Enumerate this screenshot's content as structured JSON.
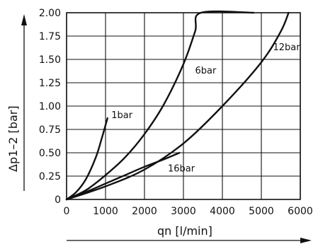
{
  "chart_data": {
    "type": "line",
    "title": "",
    "xlabel": "qn [l/min]",
    "ylabel": "Δp1–2 [bar]",
    "xlim": [
      0,
      6000
    ],
    "ylim": [
      0,
      2.0
    ],
    "x_ticks": [
      "0",
      "1000",
      "2000",
      "3000",
      "4000",
      "5000",
      "6000"
    ],
    "y_ticks": [
      "0",
      "0.25",
      "0.50",
      "0.75",
      "1.00",
      "1.25",
      "1.50",
      "1.75",
      "2.00"
    ],
    "grid": true,
    "series": [
      {
        "name": "1bar",
        "points": [
          [
            0,
            0
          ],
          [
            250,
            0.08
          ],
          [
            500,
            0.22
          ],
          [
            750,
            0.45
          ],
          [
            900,
            0.65
          ],
          [
            1050,
            0.87
          ]
        ]
      },
      {
        "name": "6bar",
        "points": [
          [
            0,
            0
          ],
          [
            500,
            0.1
          ],
          [
            1000,
            0.26
          ],
          [
            1500,
            0.45
          ],
          [
            2000,
            0.7
          ],
          [
            2500,
            1.02
          ],
          [
            3000,
            1.45
          ],
          [
            3300,
            1.8
          ],
          [
            3450,
            2.0
          ],
          [
            4800,
            2.0
          ]
        ]
      },
      {
        "name": "12bar",
        "points": [
          [
            0,
            0
          ],
          [
            1000,
            0.14
          ],
          [
            2000,
            0.32
          ],
          [
            3000,
            0.6
          ],
          [
            4000,
            1.0
          ],
          [
            5000,
            1.47
          ],
          [
            5500,
            1.8
          ],
          [
            5700,
            2.0
          ]
        ]
      },
      {
        "name": "16bar",
        "points": [
          [
            0,
            0
          ],
          [
            500,
            0.08
          ],
          [
            1000,
            0.17
          ],
          [
            1500,
            0.26
          ],
          [
            2000,
            0.35
          ],
          [
            2500,
            0.43
          ],
          [
            2900,
            0.5
          ]
        ]
      }
    ],
    "curve_labels": [
      {
        "text": "1bar",
        "x": 1150,
        "y": 0.87
      },
      {
        "text": "6bar",
        "x": 3300,
        "y": 1.35
      },
      {
        "text": "12bar",
        "x": 5300,
        "y": 1.6
      },
      {
        "text": "16bar",
        "x": 2600,
        "y": 0.3
      }
    ]
  }
}
